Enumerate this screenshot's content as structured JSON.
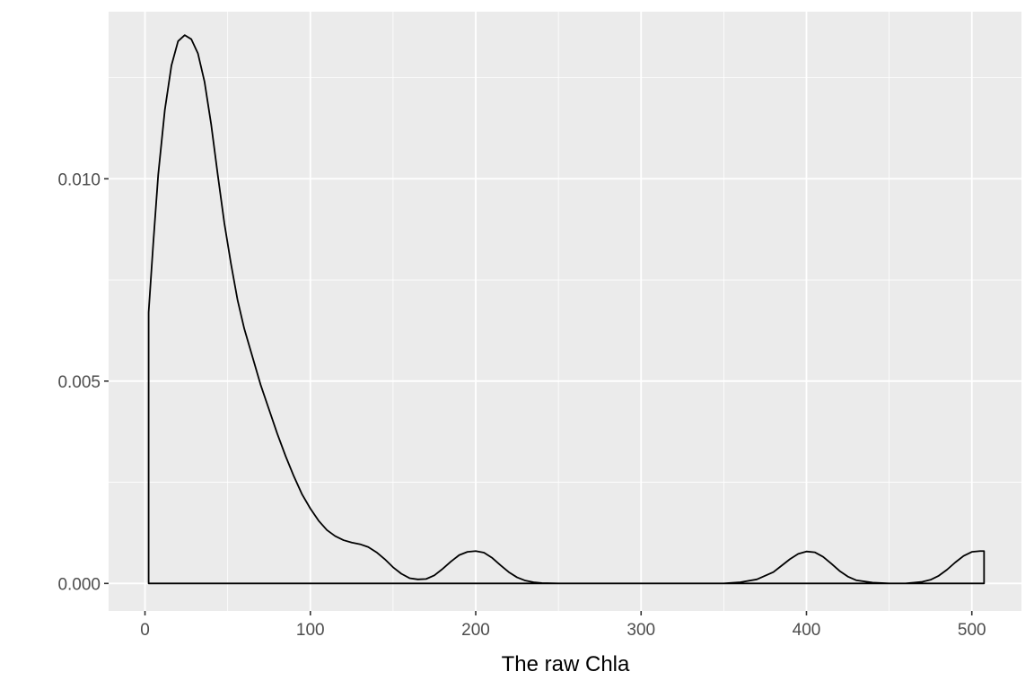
{
  "chart_data": {
    "type": "area",
    "title": "",
    "xlabel": "The raw Chla",
    "ylabel": "",
    "xlim": [
      -22,
      530
    ],
    "ylim": [
      -0.00068,
      0.01413
    ],
    "x_ticks": [
      0,
      100,
      200,
      300,
      400,
      500
    ],
    "x_tick_labels": [
      "0",
      "100",
      "200",
      "300",
      "400",
      "500"
    ],
    "y_ticks": [
      0.0,
      0.005,
      0.01
    ],
    "y_tick_labels": [
      "0.000",
      "0.005",
      "0.010"
    ],
    "x_minor_ticks": [
      50,
      150,
      250,
      350,
      450
    ],
    "y_minor_ticks": [
      0.0025,
      0.0075,
      0.0125
    ],
    "grid": true,
    "legend": "none",
    "colors": {
      "panel": "#ebebeb",
      "grid": "#ffffff",
      "line": "#000000",
      "fill": "none"
    },
    "series": [
      {
        "x": [
          2.2,
          2.2,
          5,
          8,
          12,
          16,
          20,
          24,
          28,
          32,
          36,
          40,
          44,
          48,
          52,
          56,
          60,
          65,
          70,
          75,
          80,
          85,
          90,
          95,
          100,
          105,
          110,
          115,
          120,
          125,
          130,
          135,
          140,
          145,
          150,
          155,
          160,
          165,
          170,
          175,
          180,
          185,
          190,
          195,
          200,
          205,
          210,
          215,
          220,
          225,
          230,
          235,
          240,
          250,
          300,
          350,
          360,
          370,
          380,
          385,
          390,
          395,
          400,
          405,
          410,
          415,
          420,
          425,
          430,
          440,
          450,
          460,
          470,
          475,
          480,
          485,
          490,
          495,
          500,
          505,
          507.4,
          507.4
        ],
        "y": [
          0.0,
          0.0067,
          0.0084,
          0.0101,
          0.0117,
          0.0128,
          0.0134,
          0.01355,
          0.01345,
          0.0131,
          0.0124,
          0.01135,
          0.0101,
          0.0089,
          0.0079,
          0.007,
          0.0063,
          0.0056,
          0.0049,
          0.0043,
          0.0037,
          0.00315,
          0.00265,
          0.0022,
          0.00185,
          0.00155,
          0.00132,
          0.00117,
          0.00107,
          0.00101,
          0.00097,
          0.0009,
          0.00077,
          0.0006,
          0.0004,
          0.00024,
          0.00013,
          0.0001,
          0.00011,
          0.0002,
          0.00036,
          0.00054,
          0.0007,
          0.00078,
          0.0008,
          0.00076,
          0.00063,
          0.00045,
          0.00028,
          0.00015,
          7e-05,
          3e-05,
          1e-05,
          0.0,
          0.0,
          0.0,
          3e-05,
          0.0001,
          0.00028,
          0.00044,
          0.0006,
          0.00073,
          0.00079,
          0.00077,
          0.00066,
          0.00049,
          0.00031,
          0.00017,
          8e-05,
          2e-05,
          0.0,
          0.0,
          4e-05,
          9e-05,
          0.00019,
          0.00034,
          0.00052,
          0.00068,
          0.00078,
          0.0008,
          0.0008,
          0.0
        ]
      }
    ]
  }
}
